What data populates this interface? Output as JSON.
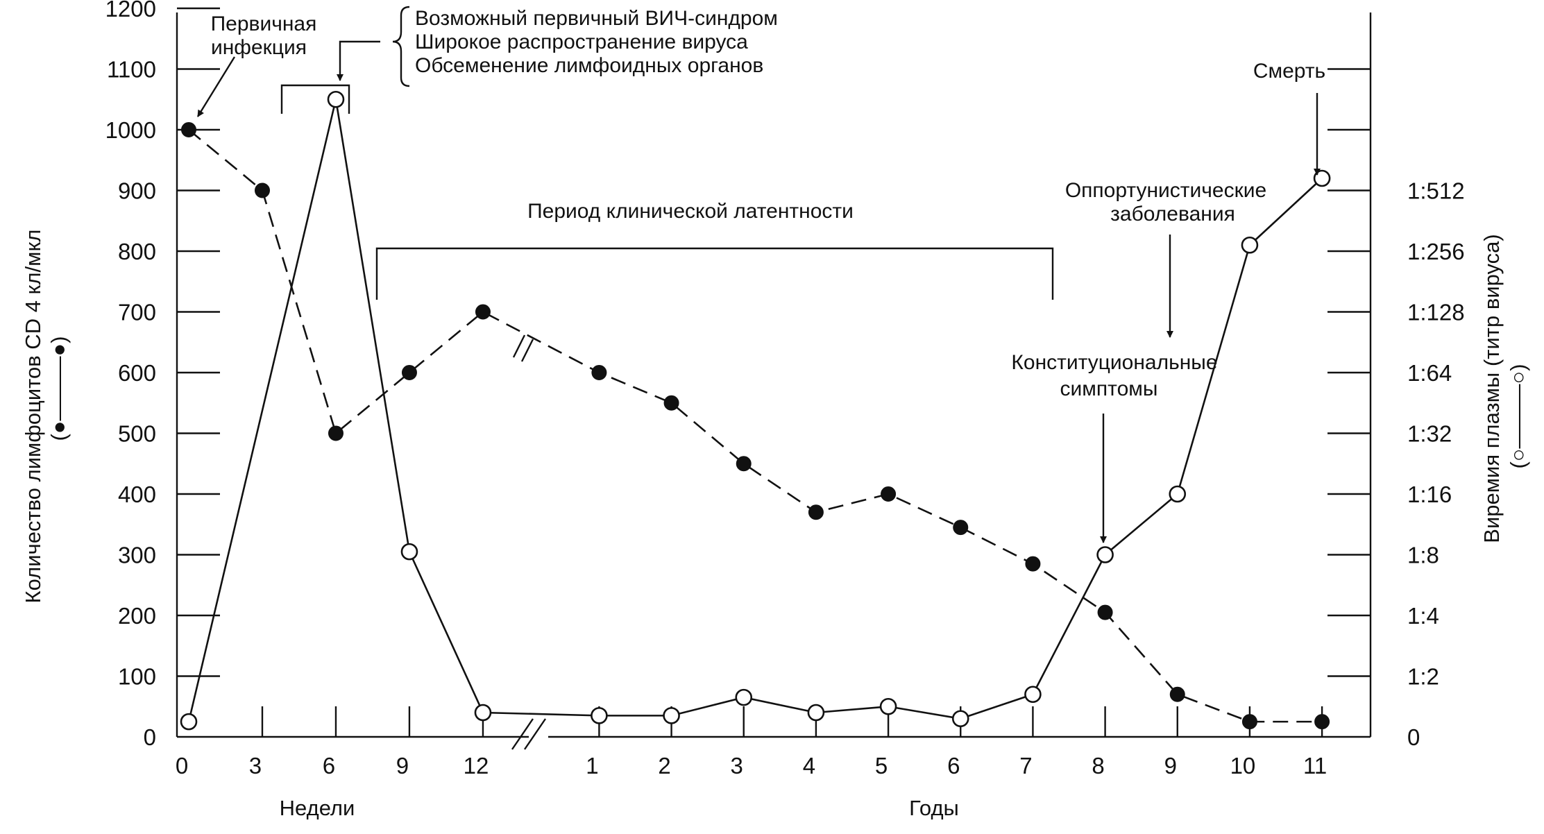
{
  "chart_data": {
    "type": "line",
    "x_axis": {
      "sections": [
        {
          "label": "Недели",
          "ticks": [
            "0",
            "3",
            "6",
            "9",
            "12"
          ]
        },
        {
          "label": "Годы",
          "ticks": [
            "1",
            "2",
            "3",
            "4",
            "5",
            "6",
            "7",
            "8",
            "9",
            "10",
            "11"
          ]
        }
      ]
    },
    "y_left": {
      "label": "Количество лимфоцитов CD 4 кл/мкл",
      "legend_symbol": "(●———●)",
      "ticks": [
        "0",
        "100",
        "200",
        "300",
        "400",
        "500",
        "600",
        "700",
        "800",
        "900",
        "1000",
        "1100",
        "1200"
      ],
      "ylim": [
        0,
        1200
      ]
    },
    "y_right": {
      "label": "Виремия плазмы (титр вируса)",
      "legend_symbol": "(○———○)",
      "ticks": [
        "0",
        "1:2",
        "1:4",
        "1:8",
        "1:16",
        "1:32",
        "1:64",
        "1:128",
        "1:256",
        "1:512"
      ],
      "scale": "log2"
    },
    "series": [
      {
        "marker": "filled",
        "style": "dashed",
        "axis": "left",
        "points": [
          {
            "x": "0 нед",
            "y": 1000
          },
          {
            "x": "3 нед",
            "y": 900
          },
          {
            "x": "6 нед",
            "y": 500
          },
          {
            "x": "9 нед",
            "y": 600
          },
          {
            "x": "12 нед",
            "y": 700
          },
          {
            "x": "1 год",
            "y": 600
          },
          {
            "x": "2 года",
            "y": 550
          },
          {
            "x": "3 года",
            "y": 450
          },
          {
            "x": "4 года",
            "y": 370
          },
          {
            "x": "5 лет",
            "y": 400
          },
          {
            "x": "6 лет",
            "y": 345
          },
          {
            "x": "7 лет",
            "y": 285
          },
          {
            "x": "8 лет",
            "y": 205
          },
          {
            "x": "9 лет",
            "y": 70
          },
          {
            "x": "10 лет",
            "y": 25
          },
          {
            "x": "11 лет",
            "y": 25
          }
        ]
      },
      {
        "marker": "open",
        "style": "solid",
        "axis": "left",
        "points": [
          {
            "x": "0 нед",
            "y": 25
          },
          {
            "x": "6 нед",
            "y": 1050
          },
          {
            "x": "9 нед",
            "y": 305
          },
          {
            "x": "12 нед",
            "y": 40
          },
          {
            "x": "1 год",
            "y": 35
          },
          {
            "x": "2 года",
            "y": 35
          },
          {
            "x": "3 года",
            "y": 65
          },
          {
            "x": "4 года",
            "y": 40
          },
          {
            "x": "5 лет",
            "y": 50
          },
          {
            "x": "6 лет",
            "y": 30
          },
          {
            "x": "7 лет",
            "y": 70
          },
          {
            "x": "8 лет",
            "y": 300
          },
          {
            "x": "9 лет",
            "y": 400
          },
          {
            "x": "10 лет",
            "y": 810
          },
          {
            "x": "11 лет",
            "y": 920
          }
        ]
      }
    ],
    "annotations": {
      "primary_infection": [
        "Первичная",
        "инфекция"
      ],
      "acute_phase": [
        "Возможный первичный ВИЧ-синдром",
        "Широкое распространение вируса",
        "Обсеменение лимфоидных органов"
      ],
      "latency": "Период клинической латентности",
      "opportunistic": [
        "Оппортунистические",
        "заболевания"
      ],
      "constitutional": [
        "Конституциональные",
        "симптомы"
      ],
      "death": "Смерть"
    }
  }
}
